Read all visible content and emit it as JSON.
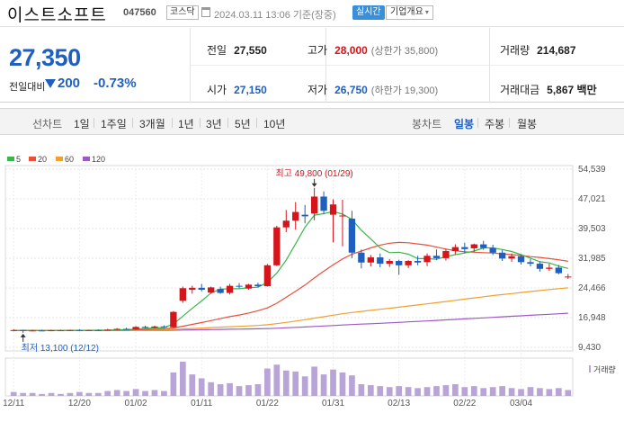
{
  "header": {
    "name": "이스트소프트",
    "code": "047560",
    "market": "코스닥",
    "asof": "2024.03.11 13:06 기준(장중)",
    "realtime_label": "실시간",
    "company_label": "기업개요"
  },
  "quote": {
    "price": "27,350",
    "change_label": "전일대비",
    "change": "200",
    "change_pct": "-0.73%",
    "prev_label": "전일",
    "prev": "27,550",
    "high_label": "고가",
    "high": "28,000",
    "upper_limit": "(상한가 35,800)",
    "volume_label": "거래량",
    "volume": "214,687",
    "open_label": "시가",
    "open": "27,150",
    "low_label": "저가",
    "low": "26,750",
    "lower_limit": "(하한가 19,300)",
    "amount_label": "거래대금",
    "amount": "5,867 백만"
  },
  "periods": {
    "line_label": "선차트",
    "line_items": [
      "1일",
      "1주일",
      "3개월",
      "1년",
      "3년",
      "5년",
      "10년"
    ],
    "candle_label": "봉차트",
    "candle_items": [
      "일봉",
      "주봉",
      "월봉"
    ],
    "candle_active": "일봉"
  },
  "colors": {
    "up": "#d4151b",
    "down": "#1f5fbf",
    "ma5": "#3bb54a",
    "ma20": "#e8503a",
    "ma60": "#f0a030",
    "ma120": "#9b59c6",
    "volume": "#b8a4d6"
  },
  "chart_data": {
    "type": "candlestick",
    "legend": [
      "5",
      "20",
      "60",
      "120"
    ],
    "y_ticks": [
      "54,539",
      "47,021",
      "39,503",
      "31,985",
      "24,466",
      "16,948",
      "9,430"
    ],
    "y_tick_values": [
      54539,
      47021,
      39503,
      31985,
      24466,
      16948,
      9430
    ],
    "x_ticks": [
      "12/11",
      "12/20",
      "01/02",
      "01/11",
      "01/22",
      "01/31",
      "02/13",
      "02/22",
      "03/04"
    ],
    "high_note": "최고 49,800 (01/29)",
    "low_note": "최저 13,100 (12/12)",
    "volume_label": "거래량",
    "candles": [
      {
        "d": "12/11",
        "o": 13700,
        "h": 14000,
        "l": 13500,
        "c": 13800
      },
      {
        "d": "12/12",
        "o": 13800,
        "h": 13900,
        "l": 13100,
        "c": 13600
      },
      {
        "d": "12/13",
        "o": 13600,
        "h": 13900,
        "l": 13500,
        "c": 13700
      },
      {
        "d": "12/14",
        "o": 13700,
        "h": 13900,
        "l": 13500,
        "c": 13650
      },
      {
        "d": "12/15",
        "o": 13650,
        "h": 13900,
        "l": 13500,
        "c": 13750
      },
      {
        "d": "12/18",
        "o": 13750,
        "h": 13900,
        "l": 13600,
        "c": 13700
      },
      {
        "d": "12/19",
        "o": 13700,
        "h": 13900,
        "l": 13600,
        "c": 13800
      },
      {
        "d": "12/20",
        "o": 13800,
        "h": 14000,
        "l": 13600,
        "c": 13700
      },
      {
        "d": "12/21",
        "o": 13700,
        "h": 13900,
        "l": 13600,
        "c": 13800
      },
      {
        "d": "12/22",
        "o": 13800,
        "h": 14000,
        "l": 13700,
        "c": 13750
      },
      {
        "d": "12/26",
        "o": 13750,
        "h": 14100,
        "l": 13700,
        "c": 13900
      },
      {
        "d": "12/27",
        "o": 13900,
        "h": 14300,
        "l": 13800,
        "c": 14100
      },
      {
        "d": "12/28",
        "o": 14100,
        "h": 14400,
        "l": 13900,
        "c": 14000
      },
      {
        "d": "01/02",
        "o": 14000,
        "h": 14800,
        "l": 13900,
        "c": 14600
      },
      {
        "d": "01/03",
        "o": 14600,
        "h": 14900,
        "l": 14200,
        "c": 14400
      },
      {
        "d": "01/04",
        "o": 14400,
        "h": 14900,
        "l": 14200,
        "c": 14700
      },
      {
        "d": "01/05",
        "o": 14700,
        "h": 15000,
        "l": 14300,
        "c": 14500
      },
      {
        "d": "01/08",
        "o": 14500,
        "h": 18600,
        "l": 14400,
        "c": 18400
      },
      {
        "d": "01/09",
        "o": 21200,
        "h": 24800,
        "l": 20700,
        "c": 24400
      },
      {
        "d": "01/10",
        "o": 24000,
        "h": 25000,
        "l": 23000,
        "c": 24500
      },
      {
        "d": "01/11",
        "o": 24500,
        "h": 25500,
        "l": 23600,
        "c": 24000
      },
      {
        "d": "01/12",
        "o": 23300,
        "h": 24800,
        "l": 23000,
        "c": 24600
      },
      {
        "d": "01/15",
        "o": 24200,
        "h": 24800,
        "l": 23000,
        "c": 23200
      },
      {
        "d": "01/16",
        "o": 23200,
        "h": 25500,
        "l": 22800,
        "c": 25000
      },
      {
        "d": "01/17",
        "o": 25000,
        "h": 25700,
        "l": 24400,
        "c": 24800
      },
      {
        "d": "01/18",
        "o": 24300,
        "h": 25500,
        "l": 24000,
        "c": 25300
      },
      {
        "d": "01/19",
        "o": 25300,
        "h": 25800,
        "l": 24600,
        "c": 24900
      },
      {
        "d": "01/22",
        "o": 24900,
        "h": 30500,
        "l": 24800,
        "c": 30200
      },
      {
        "d": "01/23",
        "o": 30200,
        "h": 40200,
        "l": 30000,
        "c": 39800
      },
      {
        "d": "01/24",
        "o": 39800,
        "h": 44200,
        "l": 38600,
        "c": 41500
      },
      {
        "d": "01/25",
        "o": 41500,
        "h": 46200,
        "l": 39200,
        "c": 43700
      },
      {
        "d": "01/26",
        "o": 43000,
        "h": 45500,
        "l": 40800,
        "c": 42600
      },
      {
        "d": "01/29",
        "o": 43300,
        "h": 49800,
        "l": 41600,
        "c": 47600
      },
      {
        "d": "01/30",
        "o": 47600,
        "h": 48900,
        "l": 43100,
        "c": 44000
      },
      {
        "d": "01/31",
        "o": 43000,
        "h": 46900,
        "l": 36000,
        "c": 45600
      },
      {
        "d": "02/01",
        "o": 42600,
        "h": 46800,
        "l": 35000,
        "c": 42800
      },
      {
        "d": "02/02",
        "o": 42000,
        "h": 44000,
        "l": 32000,
        "c": 33400
      },
      {
        "d": "02/05",
        "o": 33400,
        "h": 34200,
        "l": 29400,
        "c": 30900
      },
      {
        "d": "02/06",
        "o": 30900,
        "h": 32800,
        "l": 29900,
        "c": 32200
      },
      {
        "d": "02/07",
        "o": 32200,
        "h": 33200,
        "l": 29700,
        "c": 30600
      },
      {
        "d": "02/08",
        "o": 30600,
        "h": 31800,
        "l": 29800,
        "c": 31300
      },
      {
        "d": "02/13",
        "o": 31300,
        "h": 31600,
        "l": 27800,
        "c": 30200
      },
      {
        "d": "02/14",
        "o": 30200,
        "h": 31500,
        "l": 29500,
        "c": 31300
      },
      {
        "d": "02/15",
        "o": 31300,
        "h": 32600,
        "l": 30200,
        "c": 30900
      },
      {
        "d": "02/16",
        "o": 31000,
        "h": 33200,
        "l": 30000,
        "c": 32600
      },
      {
        "d": "02/19",
        "o": 32600,
        "h": 34200,
        "l": 31500,
        "c": 32000
      },
      {
        "d": "02/20",
        "o": 32000,
        "h": 34400,
        "l": 31400,
        "c": 33800
      },
      {
        "d": "02/21",
        "o": 33800,
        "h": 35500,
        "l": 33000,
        "c": 34800
      },
      {
        "d": "02/22",
        "o": 34800,
        "h": 35900,
        "l": 33300,
        "c": 34300
      },
      {
        "d": "02/23",
        "o": 34500,
        "h": 35700,
        "l": 33600,
        "c": 35500
      },
      {
        "d": "02/26",
        "o": 35500,
        "h": 36400,
        "l": 34100,
        "c": 34600
      },
      {
        "d": "02/27",
        "o": 34600,
        "h": 35400,
        "l": 32800,
        "c": 33400
      },
      {
        "d": "02/28",
        "o": 33400,
        "h": 34100,
        "l": 31300,
        "c": 31900
      },
      {
        "d": "02/29",
        "o": 31900,
        "h": 33200,
        "l": 31100,
        "c": 32500
      },
      {
        "d": "03/04",
        "o": 32500,
        "h": 32900,
        "l": 30400,
        "c": 31000
      },
      {
        "d": "03/05",
        "o": 31000,
        "h": 31800,
        "l": 29900,
        "c": 30600
      },
      {
        "d": "03/06",
        "o": 30600,
        "h": 31200,
        "l": 28600,
        "c": 29300
      },
      {
        "d": "03/07",
        "o": 29300,
        "h": 30600,
        "l": 28800,
        "c": 29600
      },
      {
        "d": "03/08",
        "o": 29600,
        "h": 30300,
        "l": 27900,
        "c": 28200
      },
      {
        "d": "03/11",
        "o": 27150,
        "h": 28000,
        "l": 26750,
        "c": 27350
      }
    ],
    "volume": [
      4,
      3,
      3,
      2,
      3,
      2,
      3,
      4,
      3,
      3,
      5,
      6,
      5,
      7,
      5,
      6,
      5,
      24,
      35,
      22,
      18,
      14,
      12,
      13,
      10,
      11,
      12,
      28,
      32,
      26,
      25,
      20,
      30,
      22,
      27,
      24,
      21,
      12,
      11,
      10,
      9,
      10,
      9,
      8,
      9,
      10,
      11,
      12,
      9,
      10,
      8,
      9,
      10,
      8,
      7,
      9,
      8,
      7,
      8,
      6
    ],
    "ma5": [
      13700,
      13700,
      13680,
      13690,
      13700,
      13700,
      13720,
      13730,
      13740,
      13750,
      13790,
      13850,
      13890,
      14060,
      14200,
      14360,
      14440,
      15340,
      17320,
      19300,
      21160,
      23200,
      24140,
      24260,
      24260,
      24540,
      24640,
      25860,
      28200,
      31500,
      35600,
      39840,
      42880,
      43280,
      43830,
      43160,
      41800,
      39050,
      36900,
      34600,
      33400,
      33500,
      33000,
      31900,
      31900,
      31700,
      32400,
      32900,
      33300,
      33800,
      34600,
      34600,
      34200,
      33700,
      32900,
      32000,
      31100,
      30800,
      30000,
      29400
    ],
    "ma20": [
      13700,
      13700,
      13700,
      13700,
      13700,
      13700,
      13700,
      13710,
      13710,
      13720,
      13740,
      13780,
      13820,
      13870,
      13940,
      14020,
      14090,
      14320,
      14760,
      15250,
      15700,
      16200,
      16700,
      17200,
      17600,
      18100,
      18700,
      19400,
      20600,
      22100,
      23600,
      25200,
      27000,
      28700,
      30300,
      31800,
      33000,
      33800,
      34600,
      35300,
      35800,
      36000,
      35900,
      35600,
      35300,
      34800,
      34300,
      33900,
      33600,
      33500,
      33400,
      33300,
      33100,
      32900,
      32700,
      32400,
      32200,
      31900,
      31600,
      31200
    ],
    "ma60": [
      13700,
      13700,
      13700,
      13700,
      13700,
      13700,
      13700,
      13700,
      13700,
      13710,
      13720,
      13740,
      13760,
      13790,
      13820,
      13850,
      13880,
      13960,
      14080,
      14200,
      14310,
      14420,
      14530,
      14640,
      14740,
      14850,
      14960,
      15150,
      15420,
      15740,
      16090,
      16430,
      16810,
      17170,
      17560,
      17920,
      18240,
      18530,
      18800,
      19060,
      19320,
      19600,
      19880,
      20150,
      20430,
      20720,
      21020,
      21330,
      21630,
      21930,
      22240,
      22520,
      22780,
      23040,
      23300,
      23560,
      23810,
      24050,
      24280,
      24500
    ],
    "ma120": [
      13700,
      13700,
      13700,
      13700,
      13700,
      13700,
      13700,
      13700,
      13700,
      13700,
      13700,
      13700,
      13700,
      13710,
      13720,
      13730,
      13740,
      13760,
      13800,
      13840,
      13880,
      13920,
      13960,
      14000,
      14040,
      14080,
      14120,
      14180,
      14270,
      14370,
      14480,
      14590,
      14710,
      14830,
      14950,
      15070,
      15190,
      15300,
      15410,
      15520,
      15630,
      15750,
      15870,
      15990,
      16110,
      16240,
      16370,
      16500,
      16630,
      16760,
      16890,
      17020,
      17150,
      17280,
      17410,
      17540,
      17670,
      17800,
      17930,
      18060
    ]
  }
}
